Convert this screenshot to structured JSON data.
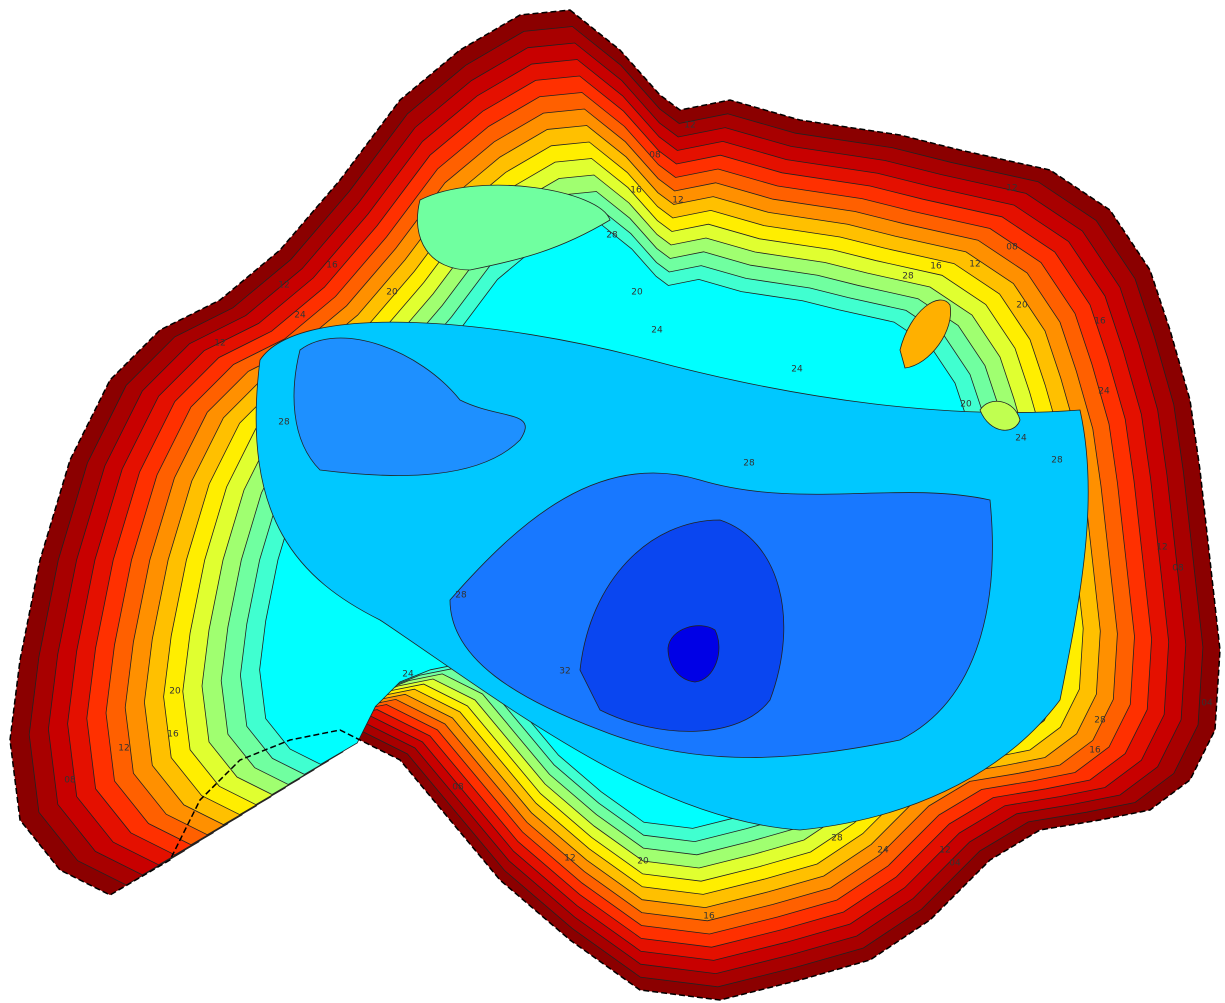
{
  "contour_labels": [
    "12",
    "08",
    "16",
    "12",
    "28",
    "16",
    "12",
    "20",
    "20",
    "24",
    "12",
    "24",
    "28",
    "16",
    "12",
    "08",
    "12",
    "20",
    "16",
    "24",
    "28",
    "20",
    "24",
    "24",
    "28",
    "28",
    "28",
    "12",
    "08",
    "32",
    "24",
    "20",
    "16",
    "12",
    "08",
    "04",
    "28",
    "16",
    "08",
    "28",
    "24",
    "12",
    "04",
    "12",
    "20",
    "16"
  ]
}
